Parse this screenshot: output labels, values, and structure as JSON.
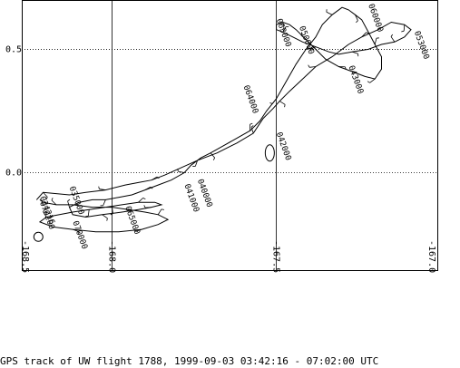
{
  "chart_data": {
    "type": "line",
    "title": "GPS track of UW flight 1788, 1999-09-03  03:42:16 - 07:02:00 UTC",
    "xlabel": "",
    "ylabel": "",
    "xlim": [
      -168.275,
      -167.01
    ],
    "ylim": [
      -0.395,
      0.7
    ],
    "grid": true,
    "x_ticks": [
      {
        "value": -168.0,
        "label": "-168.0"
      },
      {
        "value": -167.5,
        "label": "-167.5"
      },
      {
        "value": -167.0,
        "label": "-167.0"
      }
    ],
    "x_ticks_clipped": [
      {
        "value": -168.275,
        "label": "-168.5"
      },
      {
        "value": -167.01,
        "label": "-167.0"
      }
    ],
    "y_ticks": [
      {
        "value": 0.5,
        "label": "0.5"
      },
      {
        "value": 0.0,
        "label": "0.0"
      }
    ],
    "series": [
      {
        "x": [
          -168.23,
          -168.21,
          -168.13,
          -168.08,
          -168.02,
          -167.96,
          -167.92,
          -167.88,
          -167.84,
          -167.79,
          -167.74,
          -167.68,
          -167.62,
          -167.57,
          -167.54,
          -167.51,
          -167.49,
          -167.46,
          -167.42,
          -167.38,
          -167.33,
          -167.28,
          -167.24,
          -167.19,
          -167.15,
          -167.11,
          -167.09,
          -167.11,
          -167.14,
          -167.18,
          -167.22,
          -167.27,
          -167.31,
          -167.34,
          -167.38,
          -167.42,
          -167.45,
          -167.48,
          -167.5,
          -167.5,
          -167.48,
          -167.46,
          -167.44,
          -167.41,
          -167.38,
          -167.35,
          -167.31,
          -167.27,
          -167.23,
          -167.2,
          -167.18,
          -167.18,
          -167.2,
          -167.22,
          -167.24,
          -167.26,
          -167.28,
          -167.3,
          -167.33,
          -167.36,
          -167.38,
          -167.41,
          -167.44,
          -167.47,
          -167.5,
          -167.53,
          -167.55,
          -167.58,
          -167.62,
          -167.66,
          -167.7,
          -167.73,
          -167.76,
          -167.78,
          -167.82,
          -167.86,
          -167.9,
          -167.94,
          -167.98,
          -168.02,
          -168.06,
          -168.1,
          -168.13,
          -168.12,
          -168.08,
          -168.03,
          -167.97,
          -167.92,
          -167.88,
          -167.85,
          -167.87,
          -167.92,
          -167.97,
          -168.02,
          -168.07,
          -168.12,
          -168.16,
          -168.2,
          -168.22,
          -168.18,
          -168.12,
          -168.05,
          -167.98,
          -167.91,
          -167.86,
          -167.83,
          -167.86,
          -167.9,
          -167.95,
          -168.0,
          -168.06,
          -168.12,
          -168.17,
          -168.21,
          -168.22
        ],
        "y": [
          -0.11,
          -0.08,
          -0.09,
          -0.08,
          -0.07,
          -0.05,
          -0.04,
          -0.03,
          -0.01,
          0.02,
          0.05,
          0.08,
          0.12,
          0.16,
          0.22,
          0.26,
          0.29,
          0.33,
          0.38,
          0.43,
          0.47,
          0.52,
          0.55,
          0.58,
          0.61,
          0.6,
          0.58,
          0.55,
          0.53,
          0.52,
          0.5,
          0.49,
          0.48,
          0.49,
          0.51,
          0.53,
          0.55,
          0.57,
          0.58,
          0.6,
          0.61,
          0.6,
          0.58,
          0.54,
          0.5,
          0.46,
          0.43,
          0.41,
          0.39,
          0.38,
          0.42,
          0.47,
          0.52,
          0.57,
          0.62,
          0.64,
          0.66,
          0.67,
          0.64,
          0.6,
          0.55,
          0.5,
          0.44,
          0.37,
          0.3,
          0.25,
          0.21,
          0.17,
          0.14,
          0.11,
          0.08,
          0.06,
          0.03,
          0.0,
          -0.03,
          -0.05,
          -0.07,
          -0.09,
          -0.1,
          -0.11,
          -0.11,
          -0.12,
          -0.14,
          -0.17,
          -0.18,
          -0.17,
          -0.16,
          -0.15,
          -0.14,
          -0.13,
          -0.12,
          -0.12,
          -0.13,
          -0.14,
          -0.15,
          -0.16,
          -0.17,
          -0.18,
          -0.2,
          -0.22,
          -0.23,
          -0.24,
          -0.24,
          -0.23,
          -0.21,
          -0.19,
          -0.17,
          -0.16,
          -0.15,
          -0.14,
          -0.14,
          -0.13,
          -0.13,
          -0.12,
          -0.11
        ]
      }
    ],
    "time_labels": [
      {
        "text": "034216",
        "x": -168.22,
        "y": -0.1
      },
      {
        "text": "035000",
        "x": -168.13,
        "y": -0.06
      },
      {
        "text": "040000",
        "x": -167.74,
        "y": -0.03
      },
      {
        "text": "041000",
        "x": -167.78,
        "y": -0.05
      },
      {
        "text": "042000",
        "x": -167.5,
        "y": 0.16
      },
      {
        "text": "043000",
        "x": -167.28,
        "y": 0.43
      },
      {
        "text": "050000",
        "x": -167.43,
        "y": 0.59
      },
      {
        "text": "053000",
        "x": -167.08,
        "y": 0.57
      },
      {
        "text": "060000",
        "x": -167.22,
        "y": 0.68
      },
      {
        "text": "063000",
        "x": -167.5,
        "y": 0.62
      },
      {
        "text": "064000",
        "x": -167.6,
        "y": 0.35
      },
      {
        "text": "065000",
        "x": -167.96,
        "y": -0.14
      },
      {
        "text": "070000",
        "x": -168.12,
        "y": -0.2
      },
      {
        "text": "070200",
        "x": -168.22,
        "y": -0.12
      }
    ]
  },
  "caption": "GPS track of UW flight 1788, 1999-09-03  03:42:16 - 07:02:00 UTC"
}
